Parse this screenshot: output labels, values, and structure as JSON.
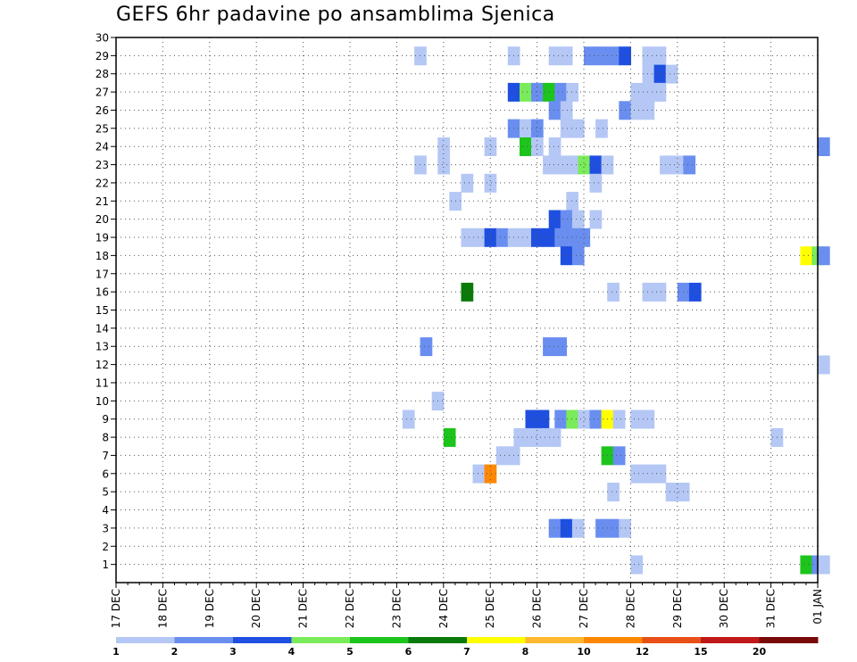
{
  "chart_data": {
    "type": "heatmap",
    "title": "GEFS 6hr padavine po ansamblima Sjenica",
    "xlabel": "",
    "ylabel": "",
    "x_ticks": [
      "17 DEC",
      "18 DEC",
      "19 DEC",
      "20 DEC",
      "21 DEC",
      "22 DEC",
      "23 DEC",
      "24 DEC",
      "25 DEC",
      "26 DEC",
      "27 DEC",
      "28 DEC",
      "29 DEC",
      "30 DEC",
      "31 DEC",
      "01 JAN"
    ],
    "x_unit": "6-hour step",
    "x_range": [
      0,
      60
    ],
    "y_ticks": [
      1,
      2,
      3,
      4,
      5,
      6,
      7,
      8,
      9,
      10,
      11,
      12,
      13,
      14,
      15,
      16,
      17,
      18,
      19,
      20,
      21,
      22,
      23,
      24,
      25,
      26,
      27,
      28,
      29,
      30
    ],
    "y_range": [
      0,
      30
    ],
    "grid": true,
    "colorbar": {
      "labels": [
        "1",
        "2",
        "3",
        "4",
        "5",
        "6",
        "7",
        "8",
        "10",
        "12",
        "15",
        "20"
      ],
      "colors": [
        "#b4c7f5",
        "#6a8ef0",
        "#1e4fe0",
        "#7aeb5a",
        "#1cc41c",
        "#0a7a0a",
        "#ffff00",
        "#ffb830",
        "#ff8800",
        "#e85018",
        "#c01818",
        "#7a0a0a"
      ]
    },
    "cells": [
      [
        25.5,
        29,
        1
      ],
      [
        33.5,
        29,
        1
      ],
      [
        37,
        29,
        1
      ],
      [
        38,
        29,
        1
      ],
      [
        40,
        29,
        2
      ],
      [
        41,
        29,
        2
      ],
      [
        42,
        29,
        2
      ],
      [
        43,
        29,
        3
      ],
      [
        45,
        29,
        1
      ],
      [
        46,
        29,
        1
      ],
      [
        45,
        28,
        1
      ],
      [
        46,
        28,
        3
      ],
      [
        47,
        28,
        1
      ],
      [
        33.5,
        27,
        3
      ],
      [
        34.5,
        27,
        4
      ],
      [
        35.5,
        27,
        2
      ],
      [
        36.5,
        27,
        5
      ],
      [
        37.5,
        27,
        2
      ],
      [
        38.5,
        27,
        1
      ],
      [
        44,
        27,
        1
      ],
      [
        45,
        27,
        1
      ],
      [
        46,
        27,
        1
      ],
      [
        37,
        26,
        2
      ],
      [
        38,
        26,
        1
      ],
      [
        43,
        26,
        2
      ],
      [
        44,
        26,
        1
      ],
      [
        45,
        26,
        1
      ],
      [
        33.5,
        25,
        2
      ],
      [
        34.5,
        25,
        1
      ],
      [
        35.5,
        25,
        2
      ],
      [
        38,
        25,
        1
      ],
      [
        39,
        25,
        1
      ],
      [
        41,
        25,
        1
      ],
      [
        27.5,
        24,
        1
      ],
      [
        31.5,
        24,
        1
      ],
      [
        34.5,
        24,
        5
      ],
      [
        35.5,
        24,
        1
      ],
      [
        37,
        24,
        1
      ],
      [
        60,
        24,
        2
      ],
      [
        25.5,
        23,
        1
      ],
      [
        27.5,
        23,
        1
      ],
      [
        36.5,
        23,
        1
      ],
      [
        37.5,
        23,
        1
      ],
      [
        38.5,
        23,
        1
      ],
      [
        39.5,
        23,
        4
      ],
      [
        40.5,
        23,
        3
      ],
      [
        41.5,
        23,
        1
      ],
      [
        46.5,
        23,
        1
      ],
      [
        47.5,
        23,
        1
      ],
      [
        48.5,
        23,
        2
      ],
      [
        29.5,
        22,
        1
      ],
      [
        31.5,
        22,
        1
      ],
      [
        40.5,
        22,
        1
      ],
      [
        28.5,
        21,
        1
      ],
      [
        38.5,
        21,
        1
      ],
      [
        37,
        20,
        3
      ],
      [
        38,
        20,
        2
      ],
      [
        39,
        20,
        1
      ],
      [
        40.5,
        20,
        1
      ],
      [
        29.5,
        19,
        1
      ],
      [
        30.5,
        19,
        1
      ],
      [
        31.5,
        19,
        3
      ],
      [
        32.5,
        19,
        2
      ],
      [
        33.5,
        19,
        1
      ],
      [
        34.5,
        19,
        1
      ],
      [
        35.5,
        19,
        3
      ],
      [
        36.5,
        19,
        3
      ],
      [
        37.5,
        19,
        2
      ],
      [
        38.5,
        19,
        2
      ],
      [
        39.5,
        19,
        2
      ],
      [
        38,
        18,
        3
      ],
      [
        39,
        18,
        2
      ],
      [
        58.5,
        18,
        7
      ],
      [
        59.5,
        18,
        4
      ],
      [
        60,
        18,
        2
      ],
      [
        29.5,
        16,
        6
      ],
      [
        42,
        16,
        1
      ],
      [
        45,
        16,
        1
      ],
      [
        46,
        16,
        1
      ],
      [
        48,
        16,
        2
      ],
      [
        49,
        16,
        3
      ],
      [
        26,
        13,
        2
      ],
      [
        36.5,
        13,
        2
      ],
      [
        37.5,
        13,
        2
      ],
      [
        60,
        12,
        1
      ],
      [
        27,
        10,
        1
      ],
      [
        24.5,
        9,
        1
      ],
      [
        35,
        9,
        3
      ],
      [
        36,
        9,
        3
      ],
      [
        37.5,
        9,
        2
      ],
      [
        38.5,
        9,
        4
      ],
      [
        39.5,
        9,
        1
      ],
      [
        40.5,
        9,
        2
      ],
      [
        41.5,
        9,
        7
      ],
      [
        42.5,
        9,
        1
      ],
      [
        44,
        9,
        1
      ],
      [
        45,
        9,
        1
      ],
      [
        28,
        8,
        5
      ],
      [
        34,
        8,
        1
      ],
      [
        35,
        8,
        1
      ],
      [
        36,
        8,
        1
      ],
      [
        37,
        8,
        1
      ],
      [
        56,
        8,
        1
      ],
      [
        32.5,
        7,
        1
      ],
      [
        33.5,
        7,
        1
      ],
      [
        41.5,
        7,
        5
      ],
      [
        42.5,
        7,
        2
      ],
      [
        30.5,
        6,
        1
      ],
      [
        31.5,
        6,
        9
      ],
      [
        44,
        6,
        1
      ],
      [
        45,
        6,
        1
      ],
      [
        46,
        6,
        1
      ],
      [
        42,
        5,
        1
      ],
      [
        47,
        5,
        1
      ],
      [
        48,
        5,
        1
      ],
      [
        37,
        3,
        2
      ],
      [
        38,
        3,
        3
      ],
      [
        39,
        3,
        1
      ],
      [
        41,
        3,
        2
      ],
      [
        42,
        3,
        2
      ],
      [
        43,
        3,
        1
      ],
      [
        44,
        1,
        1
      ],
      [
        58.5,
        1,
        5
      ],
      [
        59.5,
        1,
        2
      ],
      [
        60,
        1,
        1
      ]
    ]
  }
}
